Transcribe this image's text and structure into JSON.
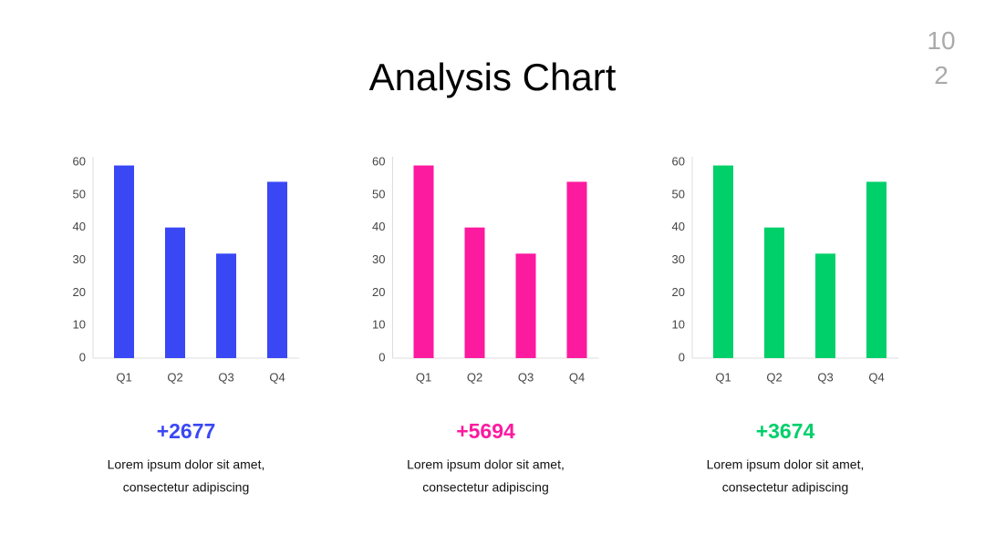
{
  "title": "Analysis Chart",
  "page_number": "102",
  "chart_data": [
    {
      "type": "bar",
      "categories": [
        "Q1",
        "Q2",
        "Q3",
        "Q4"
      ],
      "values": [
        59,
        40,
        32,
        54
      ],
      "color": "#3a47f5",
      "ylim": [
        0,
        60
      ],
      "yticks": [
        0,
        10,
        20,
        30,
        40,
        50,
        60
      ],
      "grid": false
    },
    {
      "type": "bar",
      "categories": [
        "Q1",
        "Q2",
        "Q3",
        "Q4"
      ],
      "values": [
        59,
        40,
        32,
        54
      ],
      "color": "#fc1a9f",
      "ylim": [
        0,
        60
      ],
      "yticks": [
        0,
        10,
        20,
        30,
        40,
        50,
        60
      ],
      "grid": false
    },
    {
      "type": "bar",
      "categories": [
        "Q1",
        "Q2",
        "Q3",
        "Q4"
      ],
      "values": [
        59,
        40,
        32,
        54
      ],
      "color": "#00d06a",
      "ylim": [
        0,
        60
      ],
      "yticks": [
        0,
        10,
        20,
        30,
        40,
        50,
        60
      ],
      "grid": false
    }
  ],
  "panels": [
    {
      "stat": "+2677",
      "description": [
        "Lorem ipsum dolor sit amet,",
        "consectetur adipiscing"
      ]
    },
    {
      "stat": "+5694",
      "description": [
        "Lorem ipsum dolor sit amet,",
        "consectetur adipiscing"
      ]
    },
    {
      "stat": "+3674",
      "description": [
        "Lorem ipsum dolor sit amet,",
        "consectetur adipiscing"
      ]
    }
  ]
}
